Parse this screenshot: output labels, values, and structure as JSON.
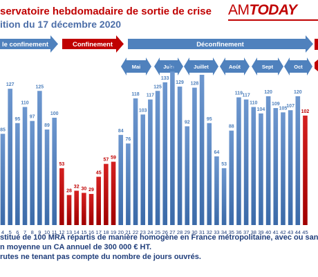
{
  "header": {
    "title_line1": "servatoire hebdomadaire de sortie de crise",
    "title_line2": "ition du 17 décembre 2020",
    "logo_am": "AM",
    "logo_today": "TODAY"
  },
  "periods": [
    {
      "label": "le confinement",
      "color": "#4f81bd"
    },
    {
      "label": "Confinement",
      "color": "#c00000"
    },
    {
      "label": "Déconfinement",
      "color": "#4f81bd"
    }
  ],
  "months": [
    "Mai",
    "Juin",
    "Juillet",
    "Août",
    "Sept",
    "Oct"
  ],
  "footer": {
    "line1": "stitué de 100 MRA répartis de manière homogène en France métropolitaine, avec ou san",
    "line2": "n moyenne un CA annuel de 300 000 € HT.",
    "line3": "rutes ne tenant pas compte du nombre de jours ouvrés."
  },
  "colors": {
    "blue": "#4f81bd",
    "red": "#c00000",
    "label_blue": "#4f81bd"
  },
  "chart_data": {
    "type": "bar",
    "categories": [
      "4",
      "5",
      "6",
      "7",
      "8",
      "9",
      "10",
      "11",
      "12",
      "13",
      "14",
      "15",
      "16",
      "17",
      "18",
      "19",
      "20",
      "21",
      "22",
      "23",
      "24",
      "25",
      "26",
      "27",
      "28",
      "29",
      "30",
      "31",
      "32",
      "33",
      "34",
      "35",
      "36",
      "37",
      "38",
      "39",
      "40",
      "41",
      "42",
      "43",
      "44",
      "45"
    ],
    "values": [
      85,
      127,
      95,
      110,
      97,
      125,
      89,
      100,
      53,
      28,
      32,
      30,
      29,
      45,
      57,
      59,
      84,
      76,
      118,
      103,
      117,
      125,
      133,
      143,
      129,
      92,
      128,
      140,
      95,
      64,
      53,
      88,
      119,
      117,
      110,
      104,
      120,
      109,
      105,
      107,
      120,
      102
    ],
    "bar_colors": [
      "blue",
      "blue",
      "blue",
      "blue",
      "blue",
      "blue",
      "blue",
      "blue",
      "red",
      "red",
      "red",
      "red",
      "red",
      "red",
      "red",
      "red",
      "blue",
      "blue",
      "blue",
      "blue",
      "blue",
      "blue",
      "blue",
      "blue",
      "blue",
      "blue",
      "blue",
      "blue",
      "blue",
      "blue",
      "blue",
      "blue",
      "blue",
      "blue",
      "blue",
      "blue",
      "blue",
      "blue",
      "blue",
      "blue",
      "blue",
      "red"
    ],
    "title": "",
    "xlabel": "",
    "ylabel": "",
    "grid": false
  }
}
